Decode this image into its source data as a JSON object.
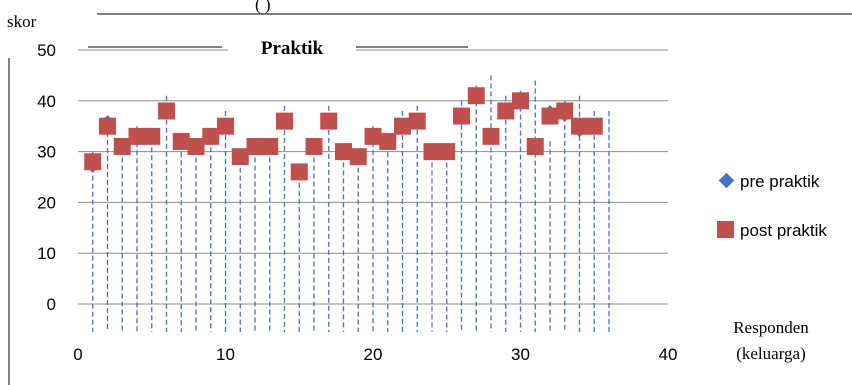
{
  "chart_data": {
    "type": "scatter",
    "title": "Praktik",
    "top_text": "(       )",
    "ylabel": "skor",
    "xlabel_line1": "Responden",
    "xlabel_line2": "(keluarga)",
    "xlim": [
      0,
      40
    ],
    "ylim": [
      0,
      50
    ],
    "x_ticks": [
      0,
      10,
      20,
      30,
      40
    ],
    "y_ticks": [
      0,
      10,
      20,
      30,
      40,
      50
    ],
    "y_tick_labels": [
      "0",
      "10",
      "20",
      "30",
      "40",
      "50"
    ],
    "grid": true,
    "legend_position": "right",
    "series": [
      {
        "name": "pre praktik",
        "marker": "diamond",
        "color": "#4472C4",
        "x": [
          1,
          2,
          3,
          4,
          5,
          6,
          7,
          8,
          9,
          10,
          11,
          12,
          13,
          14,
          15,
          16,
          17,
          18,
          19,
          20,
          21,
          22,
          23,
          24,
          25,
          26,
          27,
          28,
          29,
          30,
          31,
          32,
          33,
          34,
          35
        ],
        "y": [
          27,
          36,
          31,
          33,
          33,
          38,
          32,
          31,
          33,
          35,
          29,
          31,
          31,
          36,
          26,
          31,
          36,
          30,
          29,
          33,
          32,
          35,
          36,
          30,
          30,
          37,
          41,
          33,
          38,
          40,
          31,
          38,
          37,
          34,
          35
        ]
      },
      {
        "name": "post praktik",
        "marker": "square",
        "color": "#C0504D",
        "x": [
          1,
          2,
          3,
          4,
          5,
          6,
          7,
          8,
          9,
          10,
          11,
          12,
          13,
          14,
          15,
          16,
          17,
          18,
          19,
          20,
          21,
          22,
          23,
          24,
          25,
          26,
          27,
          28,
          29,
          30,
          31,
          32,
          33,
          34,
          35
        ],
        "y": [
          28,
          35,
          31,
          33,
          33,
          38,
          32,
          31,
          33,
          35,
          29,
          31,
          31,
          36,
          26,
          31,
          36,
          30,
          29,
          33,
          32,
          35,
          36,
          30,
          30,
          37,
          41,
          33,
          38,
          40,
          31,
          37,
          38,
          35,
          35
        ]
      }
    ],
    "drop_lines": [
      {
        "x": 1,
        "top": 30
      },
      {
        "x": 2,
        "top": 37
      },
      {
        "x": 3,
        "top": 32
      },
      {
        "x": 4,
        "top": 35
      },
      {
        "x": 5,
        "top": 34
      },
      {
        "x": 6,
        "top": 41
      },
      {
        "x": 7,
        "top": 33
      },
      {
        "x": 8,
        "top": 32
      },
      {
        "x": 9,
        "top": 34
      },
      {
        "x": 10,
        "top": 38
      },
      {
        "x": 11,
        "top": 30
      },
      {
        "x": 12,
        "top": 32
      },
      {
        "x": 13,
        "top": 32
      },
      {
        "x": 14,
        "top": 39
      },
      {
        "x": 15,
        "top": 27
      },
      {
        "x": 16,
        "top": 32
      },
      {
        "x": 17,
        "top": 39
      },
      {
        "x": 18,
        "top": 31
      },
      {
        "x": 19,
        "top": 30
      },
      {
        "x": 20,
        "top": 35
      },
      {
        "x": 21,
        "top": 33
      },
      {
        "x": 22,
        "top": 38
      },
      {
        "x": 23,
        "top": 39
      },
      {
        "x": 24,
        "top": 31
      },
      {
        "x": 25,
        "top": 31
      },
      {
        "x": 26,
        "top": 40
      },
      {
        "x": 27,
        "top": 43
      },
      {
        "x": 28,
        "top": 45
      },
      {
        "x": 29,
        "top": 41
      },
      {
        "x": 30,
        "top": 42
      },
      {
        "x": 31,
        "top": 44
      },
      {
        "x": 32,
        "top": 32
      },
      {
        "x": 33,
        "top": 40
      },
      {
        "x": 34,
        "top": 41
      },
      {
        "x": 35,
        "top": 38
      },
      {
        "x": 36,
        "top": 38
      }
    ]
  }
}
